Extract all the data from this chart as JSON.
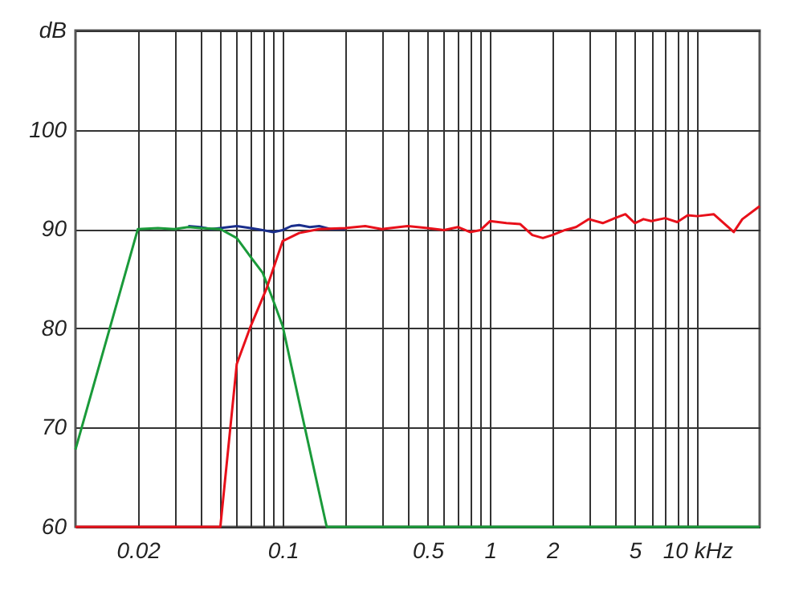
{
  "chart_data": {
    "type": "line",
    "log": "x",
    "grid": true,
    "marker": "none",
    "line_style": "solid",
    "xlim": [
      0.01,
      20
    ],
    "ylim": [
      60,
      110
    ],
    "xticks": [
      {
        "value": 0.02,
        "label": "0.02"
      },
      {
        "value": 0.03,
        "label": null
      },
      {
        "value": 0.04,
        "label": null
      },
      {
        "value": 0.05,
        "label": null
      },
      {
        "value": 0.06,
        "label": null
      },
      {
        "value": 0.07,
        "label": null
      },
      {
        "value": 0.08,
        "label": null
      },
      {
        "value": 0.09,
        "label": null
      },
      {
        "value": 0.1,
        "label": "0.1"
      },
      {
        "value": 0.2,
        "label": null
      },
      {
        "value": 0.3,
        "label": null
      },
      {
        "value": 0.4,
        "label": null
      },
      {
        "value": 0.5,
        "label": "0.5"
      },
      {
        "value": 0.6,
        "label": null
      },
      {
        "value": 0.7,
        "label": null
      },
      {
        "value": 0.8,
        "label": null
      },
      {
        "value": 0.9,
        "label": null
      },
      {
        "value": 1,
        "label": "1"
      },
      {
        "value": 2,
        "label": "2"
      },
      {
        "value": 3,
        "label": null
      },
      {
        "value": 4,
        "label": null
      },
      {
        "value": 5,
        "label": "5"
      },
      {
        "value": 6,
        "label": null
      },
      {
        "value": 7,
        "label": null
      },
      {
        "value": 8,
        "label": null
      },
      {
        "value": 9,
        "label": null
      },
      {
        "value": 10,
        "label": "10 kHz"
      }
    ],
    "yticks": [
      60,
      70,
      80,
      90,
      100,
      {
        "value": 110,
        "label": "dB"
      }
    ],
    "series": [
      {
        "color": "#1a2e8c",
        "x": [
          0.035,
          0.04,
          0.045,
          0.05,
          0.06,
          0.07,
          0.08,
          0.09,
          0.1,
          0.11,
          0.12,
          0.135,
          0.15,
          0.17,
          0.2
        ],
        "values": [
          90.3,
          90.2,
          90.0,
          90.1,
          90.3,
          90.1,
          89.9,
          89.7,
          89.9,
          90.3,
          90.4,
          90.2,
          90.3,
          90.0,
          90.0
        ]
      },
      {
        "color": "#1a9a3a",
        "x": [
          0.01,
          0.02,
          0.025,
          0.03,
          0.035,
          0.04,
          0.05,
          0.06,
          0.07,
          0.08,
          0.09,
          0.1,
          0.12,
          0.163,
          20
        ],
        "values": [
          67.8,
          90,
          90.1,
          90.0,
          90.2,
          90.1,
          90.0,
          89.1,
          87.2,
          85.6,
          82.8,
          80.2,
          72.6,
          60,
          60
        ]
      },
      {
        "color": "#e8101a",
        "x": [
          0.01,
          0.05,
          0.06,
          0.07,
          0.0835,
          0.1,
          0.12,
          0.15,
          0.2,
          0.25,
          0.3,
          0.4,
          0.5,
          0.6,
          0.7,
          0.8,
          0.9,
          1,
          1.2,
          1.4,
          1.6,
          1.8,
          2,
          2.3,
          2.6,
          3,
          3.5,
          4,
          4.5,
          5,
          5.5,
          6,
          7,
          8,
          9,
          10,
          12,
          15,
          16.5,
          20
        ],
        "values": [
          60,
          60,
          76.4,
          80.2,
          84,
          88.8,
          89.6,
          90.0,
          90.1,
          90.3,
          90.0,
          90.3,
          90.1,
          89.9,
          90.2,
          89.7,
          89.9,
          90.8,
          90.6,
          90.5,
          89.4,
          89.1,
          89.4,
          89.9,
          90.2,
          91.0,
          90.6,
          91.1,
          91.5,
          90.6,
          91.0,
          90.8,
          91.1,
          90.7,
          91.4,
          91.3,
          91.5,
          89.7,
          91.0,
          92.3
        ]
      }
    ]
  }
}
